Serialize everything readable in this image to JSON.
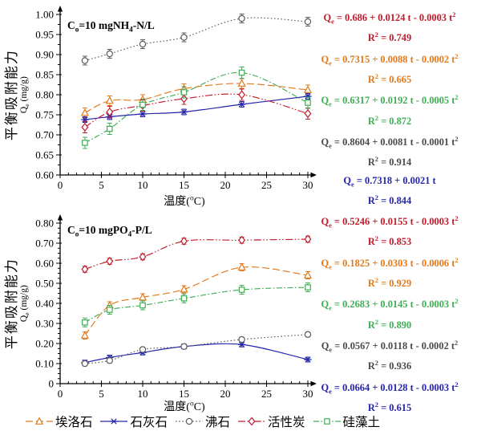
{
  "figure": {
    "x_axis_label": "温度(^oC)",
    "y_axis_label_cn": "平衡吸附能力",
    "y_axis_label_en": "Q_e (mg/g)"
  },
  "chart_data": [
    {
      "type": "line",
      "title": "C_o=10 mgNH_4-N/L",
      "xlabel": "温度(°C)",
      "ylabel": "平衡吸附能力 Qe (mg/g)",
      "xlim": [
        0,
        30
      ],
      "ylim": [
        0.6,
        1.0
      ],
      "x_ticks": [
        0,
        5,
        10,
        15,
        20,
        25,
        30
      ],
      "x_minor_step": 1,
      "y_tick_labels": [
        "0.60",
        "0.65",
        "0.70",
        "0.75",
        "0.80",
        "0.85",
        "0.90",
        "0.95",
        "1.00"
      ],
      "y_minors_per_major": 1,
      "x": [
        3,
        6,
        10,
        15,
        22,
        30
      ],
      "series": [
        {
          "id": "halloysite",
          "name": "埃洛石",
          "marker": "triangle",
          "dash": "dashed",
          "color": "#e2791b",
          "values": [
            0.755,
            0.785,
            0.788,
            0.815,
            0.828,
            0.812
          ],
          "err": 0.012
        },
        {
          "id": "limestone",
          "name": "石灰石",
          "marker": "star",
          "dash": "solid",
          "color": "#2424ac",
          "values": [
            0.738,
            0.745,
            0.752,
            0.757,
            0.776,
            0.796
          ],
          "err": 0.007
        },
        {
          "id": "zeolite",
          "name": "沸石",
          "marker": "circle",
          "dash": "dotted",
          "color": "#5e5e5e",
          "values": [
            0.885,
            0.902,
            0.926,
            0.943,
            0.99,
            0.982
          ],
          "err": 0.011
        },
        {
          "id": "activated_carbon",
          "name": "活性炭",
          "marker": "diamond",
          "dash": "dashdotdot",
          "color": "#c11b2b",
          "values": [
            0.719,
            0.757,
            0.773,
            0.79,
            0.8,
            0.753
          ],
          "err": 0.014
        },
        {
          "id": "diatomite",
          "name": "硅藻土",
          "marker": "square",
          "dash": "dashdot",
          "color": "#3fae54",
          "values": [
            0.68,
            0.715,
            0.775,
            0.806,
            0.855,
            0.78
          ],
          "err": 0.014
        }
      ],
      "equations": [
        {
          "series": "activated_carbon",
          "color": "#c11b2b",
          "eq": "Q_e = 0.686 + 0.0124 t - 0.0003 t^2",
          "r2": "R^2 = 0.749"
        },
        {
          "series": "halloysite",
          "color": "#e2791b",
          "eq": "Q_e = 0.7315 + 0.0088 t - 0.0002 t^2",
          "r2": "R^2 = 0.665"
        },
        {
          "series": "diatomite",
          "color": "#3fae54",
          "eq": "Q_e = 0.6317 + 0.0192 t - 0.0005 t^2",
          "r2": "R^2 = 0.872"
        },
        {
          "series": "zeolite",
          "color": "#4a4a4a",
          "eq": "Q_e = 0.8604 + 0.0081 t - 0.0001 t^2",
          "r2": "R^2 = 0.914"
        },
        {
          "series": "limestone",
          "color": "#2424ac",
          "eq": "Q_e = 0.7318 + 0.0021 t",
          "r2": "R^2 = 0.844"
        }
      ]
    },
    {
      "type": "line",
      "title": "C_o=10 mgPO_4-P/L",
      "xlabel": "温度(°C)",
      "ylabel": "平衡吸附能力 Qe (mg/g)",
      "xlim": [
        0,
        30
      ],
      "ylim": [
        0,
        0.8
      ],
      "x_ticks": [
        0,
        5,
        10,
        15,
        20,
        25,
        30
      ],
      "x_minor_step": 1,
      "y_tick_labels": [
        "0",
        "0.10",
        "0.20",
        "0.30",
        "0.40",
        "0.50",
        "0.60",
        "0.70",
        "0.80"
      ],
      "y_minors_per_major": 3,
      "x": [
        3,
        6,
        10,
        15,
        22,
        30
      ],
      "series": [
        {
          "id": "halloysite",
          "name": "埃洛石",
          "marker": "triangle",
          "dash": "dashed",
          "color": "#e2791b",
          "values": [
            0.24,
            0.39,
            0.43,
            0.47,
            0.58,
            0.54
          ],
          "err": 0.018
        },
        {
          "id": "limestone",
          "name": "石灰石",
          "marker": "star",
          "dash": "solid",
          "color": "#2424ac",
          "values": [
            0.105,
            0.13,
            0.155,
            0.185,
            0.195,
            0.12
          ],
          "err": 0.012
        },
        {
          "id": "zeolite",
          "name": "沸石",
          "marker": "circle",
          "dash": "dotted",
          "color": "#5e5e5e",
          "values": [
            0.1,
            0.115,
            0.17,
            0.185,
            0.22,
            0.245
          ],
          "err": 0.012
        },
        {
          "id": "activated_carbon",
          "name": "活性炭",
          "marker": "diamond",
          "dash": "dashdotdot",
          "color": "#c11b2b",
          "values": [
            0.57,
            0.61,
            0.632,
            0.71,
            0.715,
            0.72
          ],
          "err": 0.015
        },
        {
          "id": "diatomite",
          "name": "硅藻土",
          "marker": "square",
          "dash": "dashdot",
          "color": "#3fae54",
          "values": [
            0.305,
            0.368,
            0.39,
            0.425,
            0.468,
            0.48
          ],
          "err": 0.022
        }
      ],
      "equations": [
        {
          "series": "activated_carbon",
          "color": "#c11b2b",
          "eq": "Q_e = 0.5246 + 0.0155 t - 0.0003 t^2",
          "r2": "R^2 = 0.853"
        },
        {
          "series": "halloysite",
          "color": "#e2791b",
          "eq": "Q_e = 0.1825 + 0.0303 t - 0.0006 t^2",
          "r2": "R^2 = 0.929"
        },
        {
          "series": "diatomite",
          "color": "#3fae54",
          "eq": "Q_e = 0.2683 + 0.0145 t - 0.0003 t^2",
          "r2": "R^2 = 0.890"
        },
        {
          "series": "zeolite",
          "color": "#4a4a4a",
          "eq": "Q_e = 0.0567 + 0.0118 t - 0.0002 t^2",
          "r2": "R^2 = 0.936"
        },
        {
          "series": "limestone",
          "color": "#2424ac",
          "eq": "Q_e = 0.0664 + 0.0128 t - 0.0003 t^2",
          "r2": "R^2 = 0.615"
        }
      ]
    }
  ]
}
